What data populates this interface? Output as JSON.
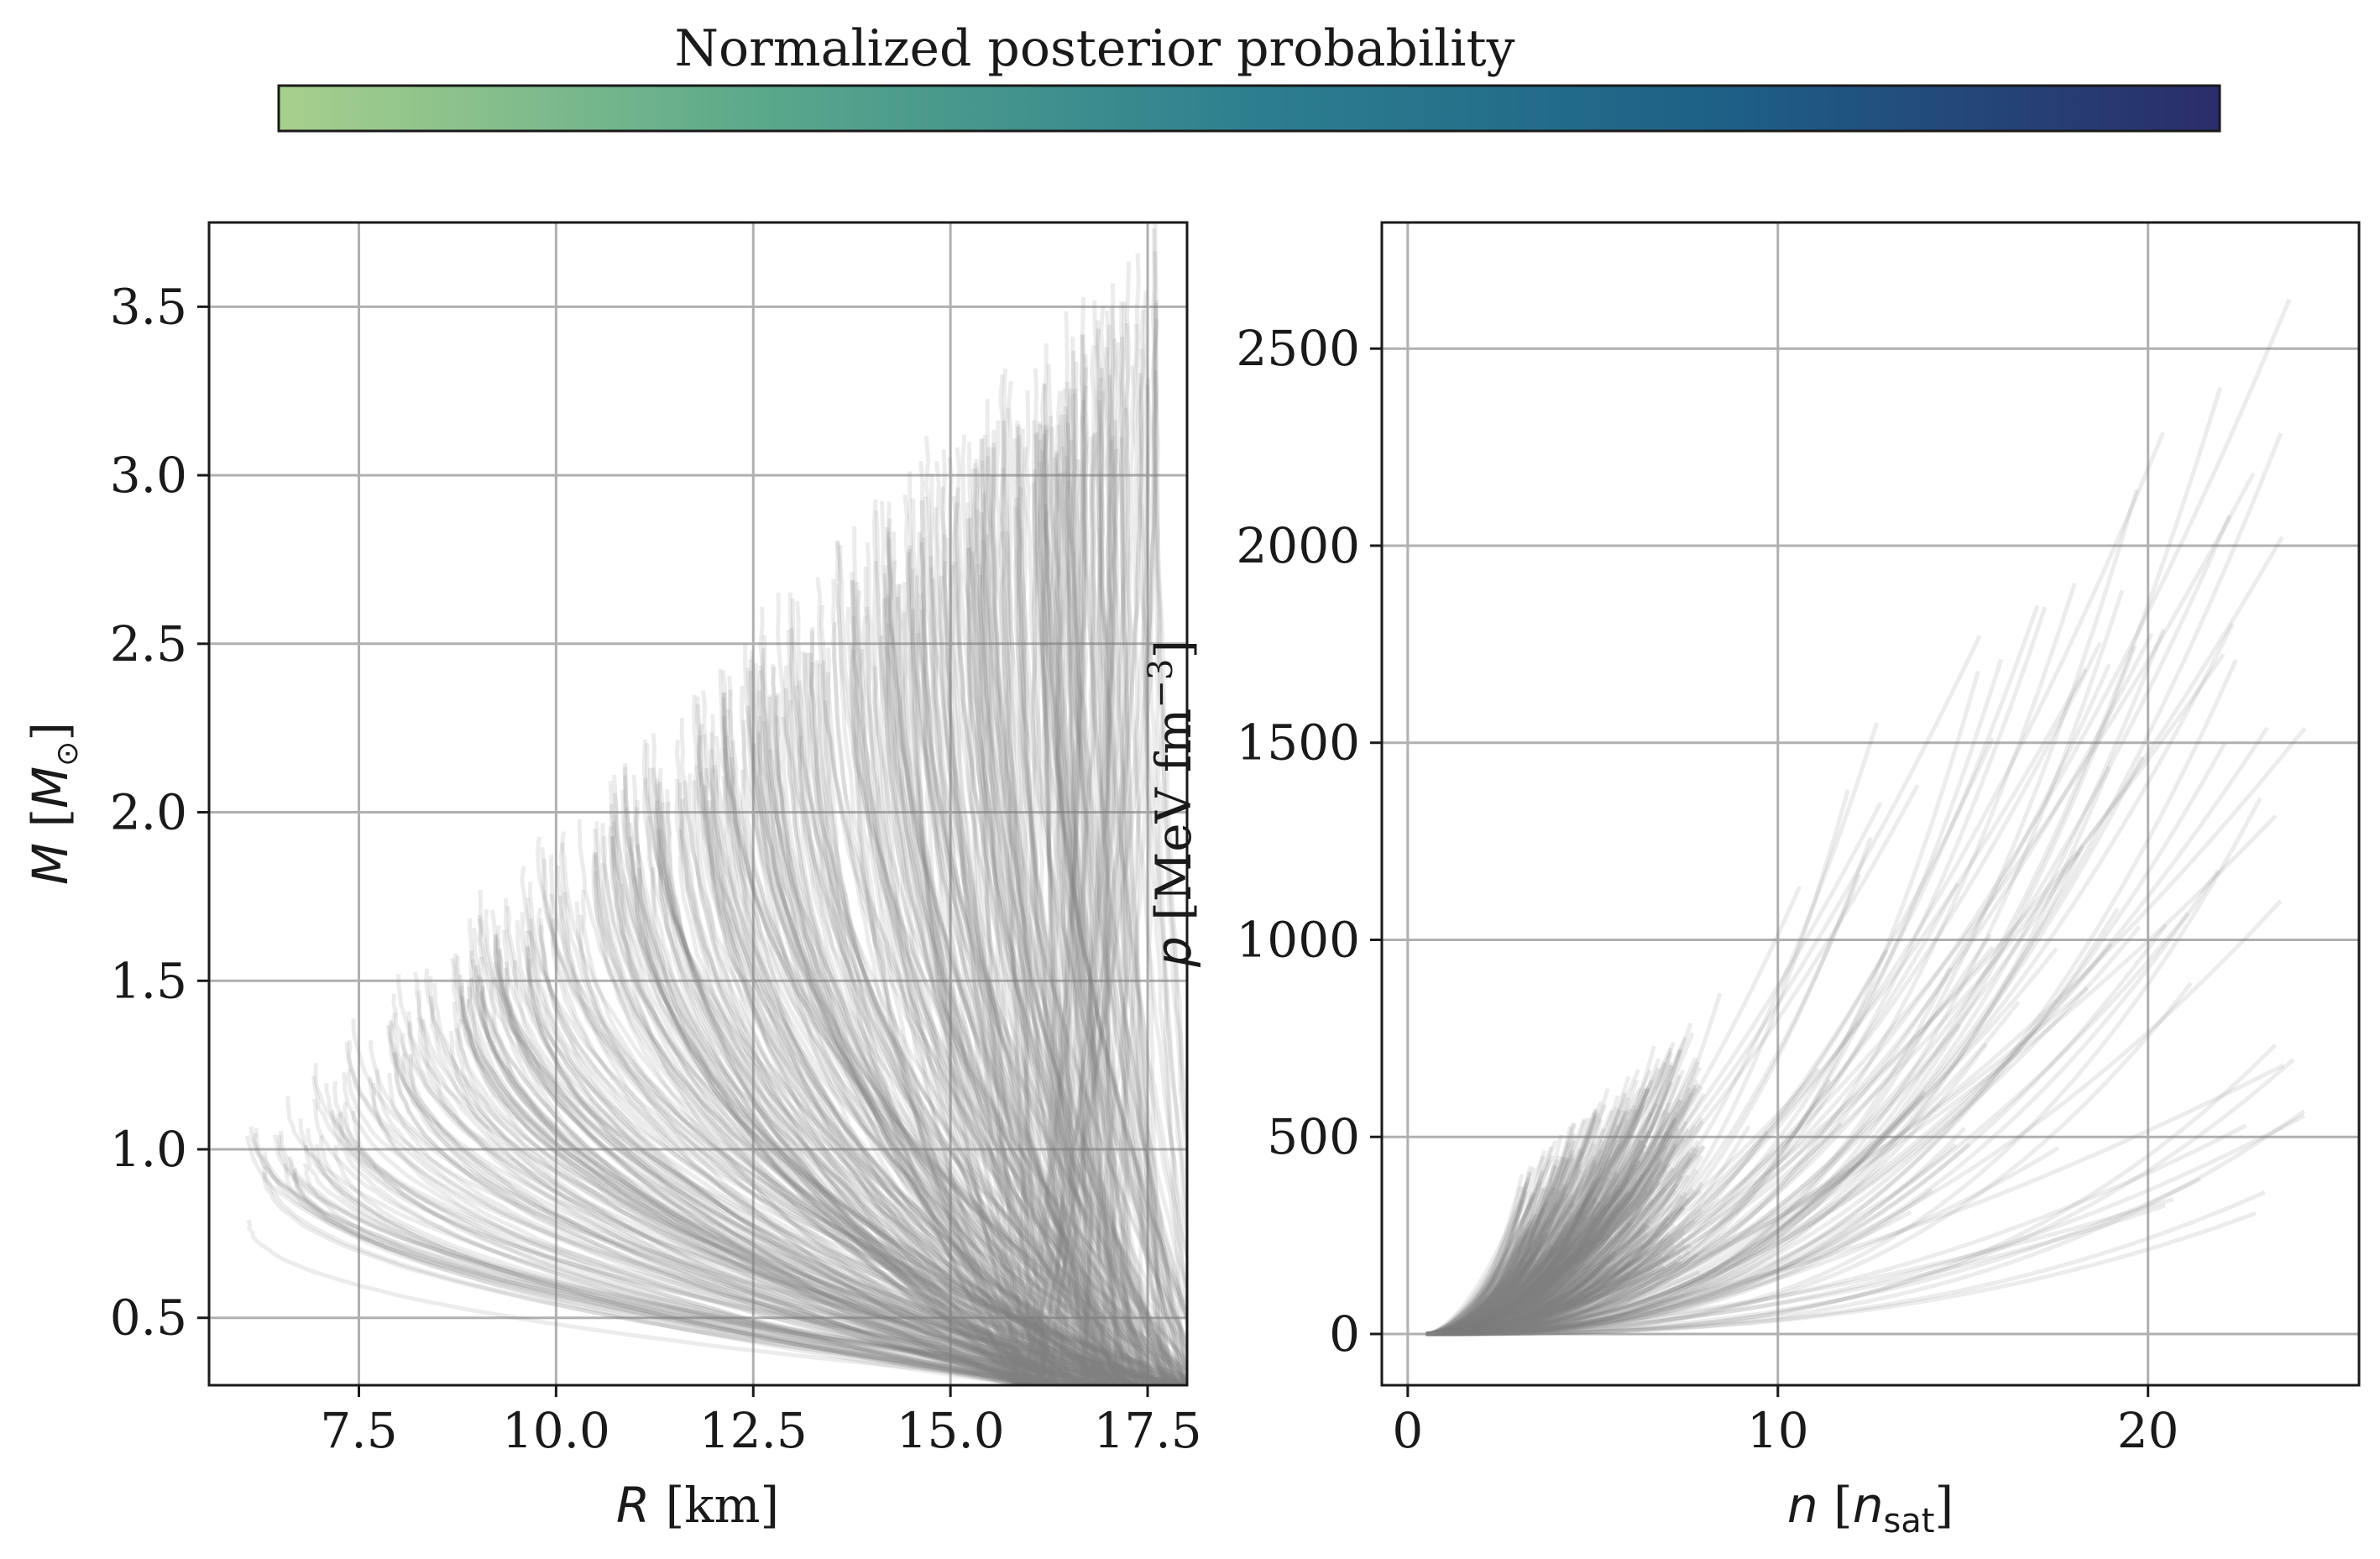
{
  "colorbar": {
    "label": "Normalized posterior probability",
    "colors": [
      "#a8d08d",
      "#5aa88b",
      "#2d7f8f",
      "#1d5f86",
      "#2b2d6b"
    ]
  },
  "chart_data": [
    {
      "type": "line",
      "panel": "mass-radius",
      "xlabel": "R [km]",
      "ylabel": "M [M⊙]",
      "xlim": [
        5.6,
        18.0
      ],
      "ylim": [
        0.3,
        3.75
      ],
      "xticks": [
        7.5,
        10.0,
        12.5,
        15.0,
        17.5
      ],
      "xtick_labels": [
        "7.5",
        "10.0",
        "12.5",
        "15.0",
        "17.5"
      ],
      "yticks": [
        0.5,
        1.0,
        1.5,
        2.0,
        2.5,
        3.0,
        3.5
      ],
      "ytick_labels": [
        "0.5",
        "1.0",
        "1.5",
        "2.0",
        "2.5",
        "3.0",
        "3.5"
      ],
      "grid": true,
      "line_color": "#808080",
      "line_alpha": 0.15,
      "series_count": 1000,
      "envelope": {
        "max_mass_range": [
          0.9,
          3.72
        ],
        "radius_at_max_mass_range": [
          6.0,
          17.6
        ],
        "low_mass_radius_range": [
          15.5,
          18.0
        ]
      }
    },
    {
      "type": "line",
      "panel": "pressure-density",
      "xlabel": "n [n_sat]",
      "ylabel": "p [MeV fm^-3]",
      "xlim": [
        -0.7,
        25.7
      ],
      "ylim": [
        -130,
        2820
      ],
      "xticks": [
        0,
        10,
        20
      ],
      "xtick_labels": [
        "0",
        "10",
        "20"
      ],
      "yticks": [
        0,
        500,
        1000,
        1500,
        2000,
        2500
      ],
      "ytick_labels": [
        "0",
        "500",
        "1000",
        "1500",
        "2000",
        "2500"
      ],
      "grid": true,
      "line_color": "#808080",
      "line_alpha": 0.15,
      "series_count": 1000,
      "envelope": {
        "start_density": 0.5,
        "dense_core_max_density": [
          5,
          8
        ],
        "dense_core_max_pressure": [
          500,
          900
        ],
        "max_density": 24.3,
        "max_pressure": 2690
      }
    }
  ]
}
